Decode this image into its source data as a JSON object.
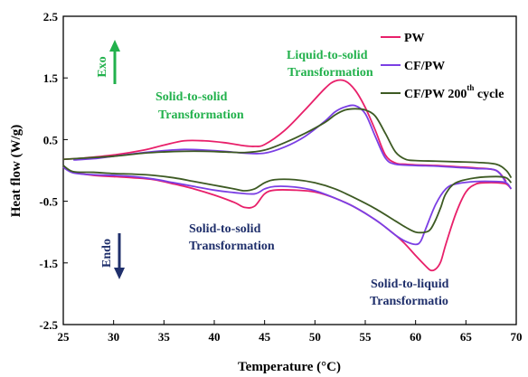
{
  "chart_data": {
    "type": "line",
    "xlabel": "Temperature (°C)",
    "ylabel": "Heat flow (W/g)",
    "xlim": [
      25,
      70
    ],
    "ylim": [
      -2.5,
      2.5
    ],
    "xticks": [
      "25",
      "30",
      "35",
      "40",
      "45",
      "50",
      "55",
      "60",
      "65",
      "70"
    ],
    "yticks": [
      "2.5",
      "1.5",
      "0.5",
      "-0.5",
      "-1.5",
      "-2.5"
    ],
    "grid": false,
    "legend_position": "top-right",
    "legend": {
      "pw": "PW",
      "cfpw": "CF/PW",
      "cfpw200_main": "CF/PW 200",
      "cfpw200_sup": "th",
      "cfpw200_tail": "cycle"
    },
    "annotations": {
      "exo": "Exo",
      "endo": "Endo",
      "solid_solid_top_1": "Solid-to-solid",
      "solid_solid_top_2": "Transformation",
      "liquid_solid_1": "Liquid-to-solid",
      "liquid_solid_2": "Transformation",
      "solid_solid_bottom_1": "Solid-to-solid",
      "solid_solid_bottom_2": "Transformation",
      "solid_liquid_1": "Solid-to-liquid",
      "solid_liquid_2": "Transformatio"
    },
    "colors": {
      "pw": "#e8206a",
      "cfpw": "#7b3fe4",
      "cfpw200": "#3d5a23",
      "green_text": "#22b14c",
      "navy_text": "#1f2f6b"
    },
    "series": [
      {
        "key": "pw",
        "cooling": {
          "x": [
            25,
            27,
            30,
            33,
            35,
            37,
            39,
            41,
            43,
            44,
            45,
            47,
            49,
            51,
            52,
            53,
            54,
            55,
            56,
            57,
            58,
            59,
            60,
            62,
            64,
            66,
            68,
            69
          ],
          "y": [
            0.18,
            0.2,
            0.25,
            0.33,
            0.41,
            0.48,
            0.48,
            0.45,
            0.4,
            0.39,
            0.42,
            0.65,
            0.98,
            1.33,
            1.45,
            1.45,
            1.3,
            1.02,
            0.65,
            0.25,
            0.12,
            0.1,
            0.09,
            0.08,
            0.06,
            0.04,
            0.0,
            -0.18
          ]
        },
        "heating": {
          "x": [
            25,
            26,
            28,
            30,
            32,
            34,
            36,
            38,
            40,
            42,
            43,
            44,
            45,
            46,
            48,
            50,
            52,
            54,
            56,
            58,
            59,
            60,
            61,
            61.5,
            62,
            62.5,
            63,
            64,
            65,
            66,
            67,
            68,
            69,
            69.5
          ],
          "y": [
            0.05,
            -0.03,
            -0.08,
            -0.1,
            -0.12,
            -0.15,
            -0.22,
            -0.3,
            -0.4,
            -0.52,
            -0.6,
            -0.58,
            -0.38,
            -0.32,
            -0.32,
            -0.35,
            -0.45,
            -0.6,
            -0.8,
            -1.05,
            -1.2,
            -1.38,
            -1.55,
            -1.62,
            -1.6,
            -1.48,
            -1.2,
            -0.7,
            -0.35,
            -0.22,
            -0.2,
            -0.2,
            -0.22,
            -0.3
          ]
        }
      },
      {
        "key": "cfpw",
        "cooling": {
          "x": [
            26,
            28,
            30,
            33,
            35,
            37,
            39,
            41,
            43,
            45,
            47,
            49,
            51,
            52,
            53,
            54,
            55,
            56,
            57,
            58,
            60,
            62,
            64,
            66,
            68,
            69
          ],
          "y": [
            0.17,
            0.19,
            0.23,
            0.29,
            0.32,
            0.34,
            0.33,
            0.31,
            0.28,
            0.28,
            0.38,
            0.55,
            0.8,
            0.95,
            1.03,
            1.05,
            0.92,
            0.55,
            0.2,
            0.1,
            0.08,
            0.07,
            0.05,
            0.03,
            0.0,
            -0.2
          ]
        },
        "heating": {
          "x": [
            25,
            26,
            28,
            30,
            32,
            34,
            36,
            38,
            40,
            42,
            44,
            45,
            46,
            48,
            50,
            52,
            54,
            56,
            57,
            58,
            59,
            60,
            60.5,
            61,
            62,
            63,
            64,
            66,
            68,
            69,
            69.5
          ],
          "y": [
            0.05,
            -0.04,
            -0.07,
            -0.08,
            -0.1,
            -0.14,
            -0.2,
            -0.26,
            -0.32,
            -0.36,
            -0.38,
            -0.3,
            -0.26,
            -0.27,
            -0.33,
            -0.45,
            -0.6,
            -0.8,
            -0.92,
            -1.05,
            -1.15,
            -1.2,
            -1.15,
            -0.95,
            -0.55,
            -0.3,
            -0.22,
            -0.18,
            -0.18,
            -0.2,
            -0.3
          ]
        }
      },
      {
        "key": "cfpw200",
        "cooling": {
          "x": [
            25,
            27,
            30,
            33,
            35,
            37,
            39,
            41,
            43,
            45,
            47,
            49,
            51,
            52,
            53,
            54,
            55,
            56,
            57,
            58,
            59,
            60,
            62,
            64,
            66,
            68,
            69,
            69.5
          ],
          "y": [
            0.18,
            0.2,
            0.23,
            0.28,
            0.3,
            0.31,
            0.31,
            0.3,
            0.29,
            0.33,
            0.45,
            0.6,
            0.78,
            0.9,
            0.98,
            1.0,
            0.98,
            0.88,
            0.6,
            0.3,
            0.18,
            0.16,
            0.15,
            0.14,
            0.13,
            0.1,
            0.0,
            -0.12
          ]
        },
        "heating": {
          "x": [
            25,
            26,
            28,
            30,
            32,
            34,
            36,
            38,
            40,
            42,
            43,
            44,
            45,
            46,
            48,
            50,
            52,
            54,
            56,
            58,
            59,
            60,
            61,
            61.5,
            62,
            62.5,
            63,
            64,
            66,
            68,
            69,
            69.5
          ],
          "y": [
            0.08,
            -0.02,
            -0.03,
            -0.05,
            -0.06,
            -0.08,
            -0.12,
            -0.18,
            -0.24,
            -0.3,
            -0.33,
            -0.3,
            -0.2,
            -0.15,
            -0.15,
            -0.2,
            -0.3,
            -0.45,
            -0.62,
            -0.82,
            -0.92,
            -1.0,
            -1.0,
            -0.95,
            -0.8,
            -0.6,
            -0.38,
            -0.2,
            -0.12,
            -0.1,
            -0.12,
            -0.2
          ]
        }
      }
    ]
  }
}
